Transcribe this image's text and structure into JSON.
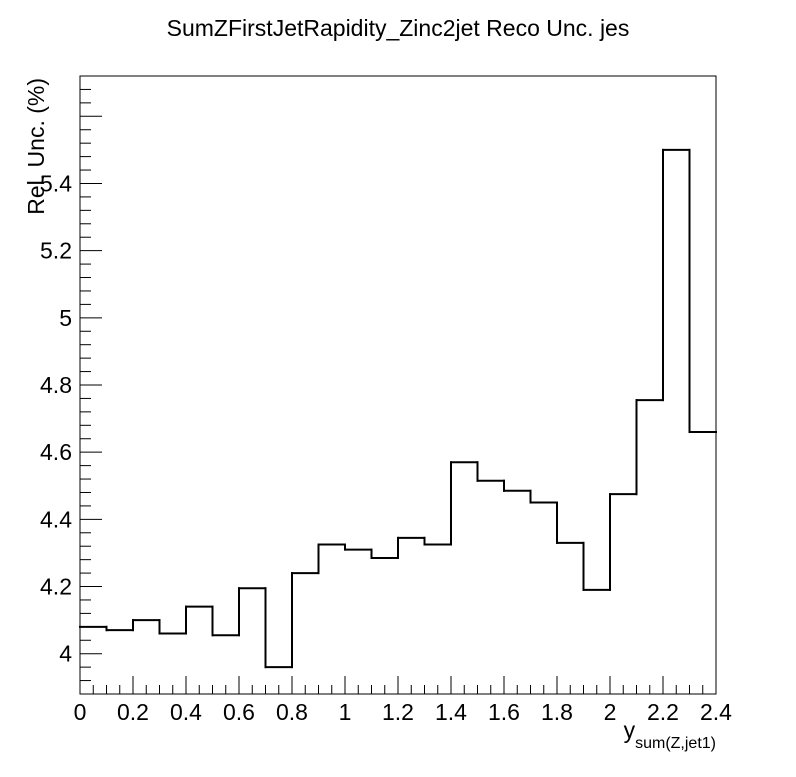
{
  "chart_data": {
    "type": "histogram",
    "title": "SumZFirstJetRapidity_Zinc2jet Reco Unc. jes",
    "ylabel": "Rel. Unc. (%)",
    "xlabel_main": "y",
    "xlabel_sub": "sum(Z,jet1)",
    "xlim": [
      0,
      2.4
    ],
    "ylim": [
      3.88,
      5.72
    ],
    "x_ticks": [
      "0",
      "0.2",
      "0.4",
      "0.6",
      "0.8",
      "1",
      "1.2",
      "1.4",
      "1.6",
      "1.8",
      "2",
      "2.2",
      "2.4"
    ],
    "y_ticks": [
      "4",
      "4.2",
      "4.4",
      "4.6",
      "4.8",
      "5",
      "5.2",
      "5.4"
    ],
    "bin_edges": [
      0,
      0.1,
      0.2,
      0.3,
      0.4,
      0.5,
      0.6,
      0.7,
      0.8,
      0.9,
      1.0,
      1.1,
      1.2,
      1.3,
      1.4,
      1.5,
      1.6,
      1.7,
      1.8,
      1.9,
      2.0,
      2.1,
      2.2,
      2.3,
      2.4
    ],
    "values": [
      4.08,
      4.07,
      4.1,
      4.06,
      4.14,
      4.055,
      4.195,
      3.96,
      4.24,
      4.325,
      4.31,
      4.285,
      4.345,
      4.325,
      4.57,
      4.515,
      4.485,
      4.45,
      4.33,
      4.19,
      4.475,
      4.755,
      5.5,
      4.66
    ],
    "line_color": "#000000",
    "grid": false,
    "legend": false
  }
}
